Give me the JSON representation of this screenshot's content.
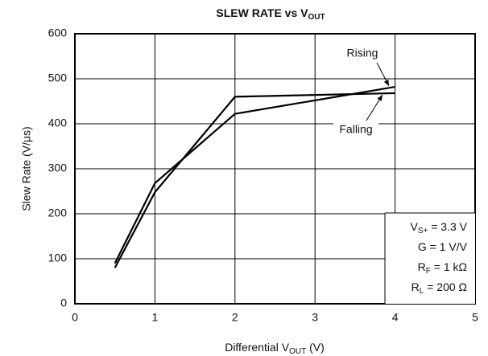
{
  "chart_data": {
    "type": "line",
    "title": [
      "SLEW RATE vs V",
      "OUT"
    ],
    "x_label": [
      "Differential V",
      "OUT",
      " (V)"
    ],
    "y_label": "Slew Rate (V/μs)",
    "x": [
      0.5,
      1,
      2,
      4
    ],
    "series": [
      {
        "name": "Rising",
        "color": "#000000",
        "values": [
          90,
          268,
          422,
          482
        ]
      },
      {
        "name": "Falling",
        "color": "#000000",
        "values": [
          80,
          248,
          460,
          468
        ]
      }
    ],
    "xlim": [
      0,
      5
    ],
    "xticks": [
      0,
      1,
      2,
      3,
      4,
      5
    ],
    "ylim": [
      0,
      600
    ],
    "yticks": [
      0,
      100,
      200,
      300,
      400,
      500,
      600
    ],
    "grid": true,
    "annotations": [
      [
        "V",
        "S+",
        " = 3.3 V"
      ],
      [
        "G = 1 V/V"
      ],
      [
        "R",
        "F",
        " = 1 kΩ"
      ],
      [
        "R",
        "L",
        " = 200 Ω"
      ]
    ]
  }
}
